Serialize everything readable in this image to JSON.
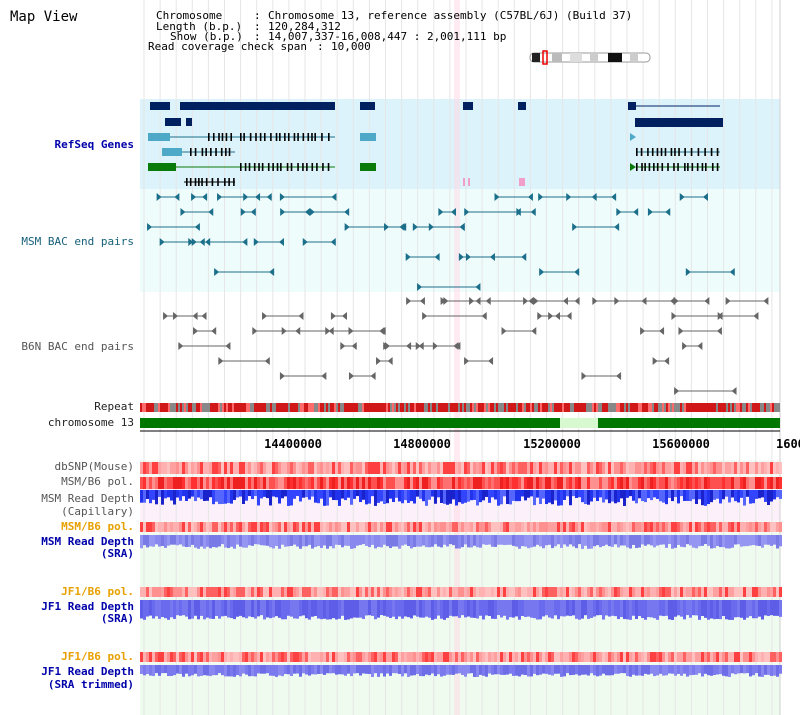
{
  "title": "Map View",
  "info": {
    "chromosome_label": "Chromosome",
    "chromosome_value": "Chromosome 13, reference assembly (C57BL/6J) (Build 37)",
    "length_label": "Length (b.p.)",
    "length_value": "120,284,312",
    "show_label": "Show (b.p.)",
    "show_value": "14,007,337-16,008,447 : 2,001,111 bp",
    "coverage_label": "Read coverage check span",
    "coverage_value": "10,000"
  },
  "tracks": {
    "refseq": "RefSeq Genes",
    "msm_bac": "MSM BAC end pairs",
    "b6n_bac": "B6N BAC end pairs",
    "repeat": "Repeat",
    "chromosome": "chromosome 13",
    "dbsnp": "dbSNP(Mouse)",
    "msm_b6_pol_1": "MSM/B6 pol.",
    "msm_depth_cap_1": "MSM Read Depth",
    "msm_depth_cap_2": "(Capillary)",
    "msm_b6_pol_2": "MSM/B6 pol.",
    "msm_depth_sra_1": "MSM Read Depth",
    "msm_depth_sra_2": "(SRA)",
    "jf1_b6_pol_1": "JF1/B6 pol.",
    "jf1_depth_sra_1": "JF1 Read Depth",
    "jf1_depth_sra_2": "(SRA)",
    "jf1_b6_pol_2": "JF1/B6 pol.",
    "jf1_depth_trim_1": "JF1 Read Depth",
    "jf1_depth_trim_2": "(SRA trimmed)"
  },
  "axis": {
    "ticks": [
      "14400000",
      "14800000",
      "15200000",
      "15600000",
      "1600"
    ]
  },
  "colors": {
    "refseq_bg": "#dcf3fb",
    "bac_bg": "#effcfc",
    "lower_bg": "#eefbee",
    "chromosome_green": "#007700",
    "gene_dark": "#002060",
    "gene_teal": "#1c6f8a",
    "gene_green": "#0a7a0a",
    "snp_red": "#ff3333",
    "depth_blue": "#2233ee",
    "depth_lavender": "#7a7aee"
  }
}
